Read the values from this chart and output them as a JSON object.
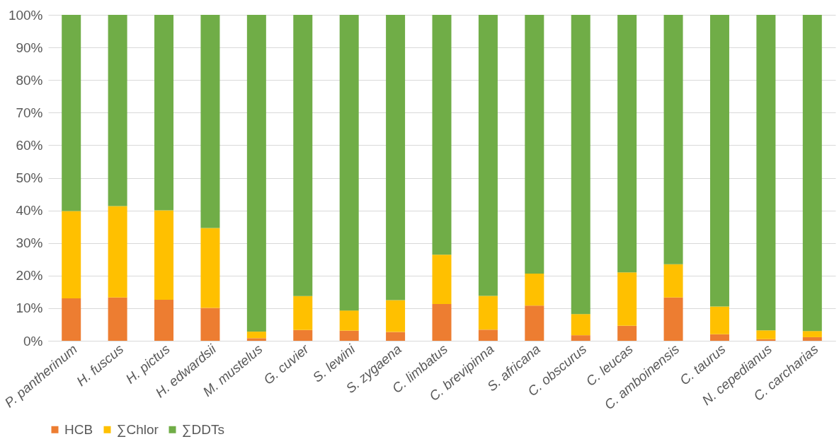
{
  "chart_data": {
    "type": "bar",
    "stacked": true,
    "categories": [
      "P. pantherinum",
      "H. fuscus",
      "H. pictus",
      "H. edwardsii",
      "M. mustelus",
      "G. cuvier",
      "S. lewini",
      "S. zygaena",
      "C. limbatus",
      "C. brevipinna",
      "S. africana",
      "C. obscurus",
      "C. leucas",
      "C. amboinensis",
      "C. taurus",
      "N. cepedianus",
      "C. carcharias"
    ],
    "series": [
      {
        "name": "HCB",
        "color": "#ed7d31",
        "values": [
          13,
          13.3,
          12.6,
          10.1,
          0.8,
          3.3,
          3.1,
          2.7,
          11.3,
          3.4,
          10.8,
          1.7,
          4.6,
          13.3,
          2.0,
          0.5,
          1.1
        ]
      },
      {
        "name": "∑Chlor",
        "color": "#ffc000",
        "values": [
          26.8,
          28.0,
          27.4,
          24.5,
          2.0,
          10.4,
          6.2,
          9.8,
          15.1,
          10.4,
          9.8,
          6.5,
          16.4,
          10.2,
          8.5,
          2.7,
          1.9
        ]
      },
      {
        "name": "∑DDTs",
        "color": "#70ad47",
        "values": [
          60.2,
          58.7,
          60,
          65.4,
          97.2,
          86.3,
          90.7,
          87.5,
          73.6,
          86.2,
          79.4,
          91.8,
          79,
          76.5,
          89.5,
          96.8,
          97
        ]
      }
    ],
    "ylim": [
      0,
      100
    ],
    "yticks": [
      {
        "value": 0,
        "label": "0%"
      },
      {
        "value": 10,
        "label": "10%"
      },
      {
        "value": 20,
        "label": "20%"
      },
      {
        "value": 30,
        "label": "30%"
      },
      {
        "value": 40,
        "label": "40%"
      },
      {
        "value": 50,
        "label": "50%"
      },
      {
        "value": 60,
        "label": "60%"
      },
      {
        "value": 70,
        "label": "70%"
      },
      {
        "value": 80,
        "label": "80%"
      },
      {
        "value": 90,
        "label": "90%"
      },
      {
        "value": 100,
        "label": "100%"
      }
    ],
    "grid": "y",
    "legend": "bottom"
  }
}
